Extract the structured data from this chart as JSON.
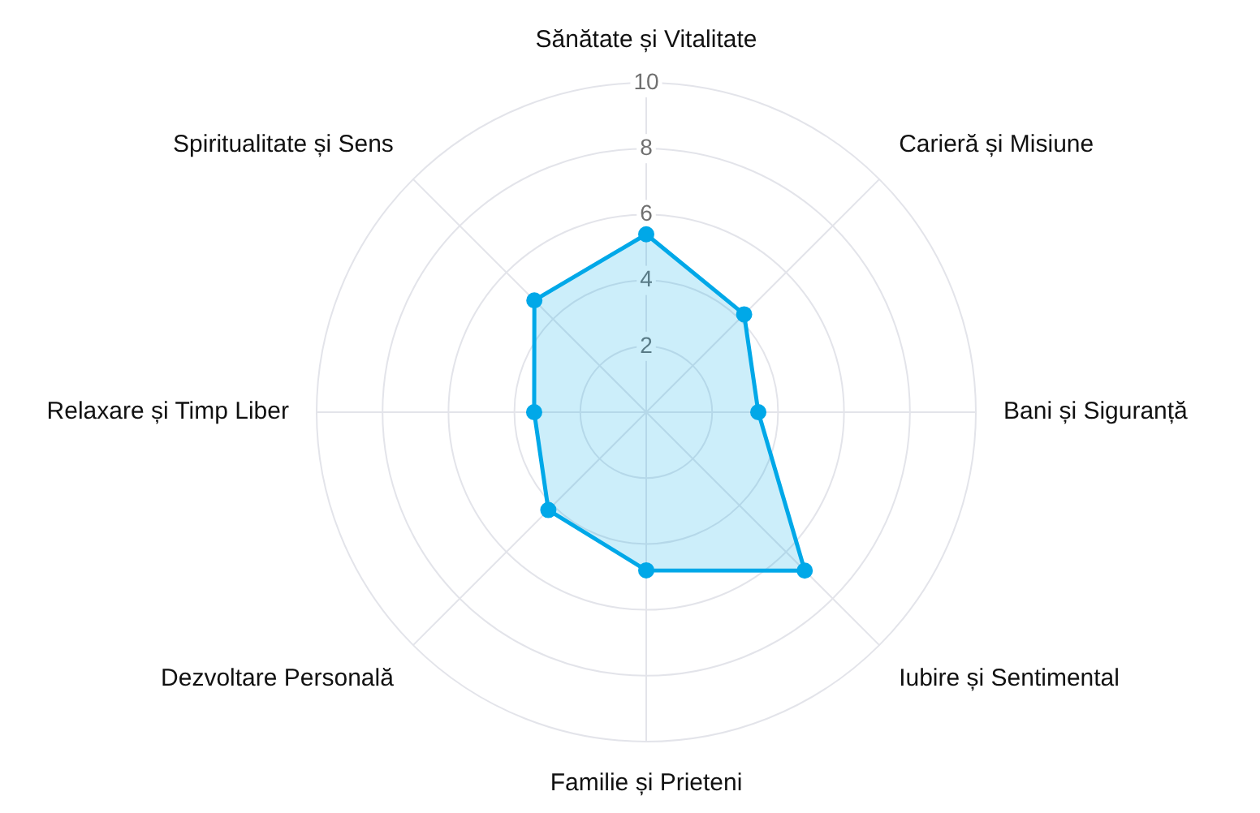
{
  "chart_data": {
    "type": "radar",
    "categories": [
      "Sănătate și Vitalitate",
      "Carieră și Misiune",
      "Bani și Siguranță",
      "Iubire și Sentimental",
      "Familie și Prieteni",
      "Dezvoltare Personală",
      "Relaxare și Timp Liber",
      "Spiritualitate și Sens"
    ],
    "series": [
      {
        "color": "#00a8e8",
        "values": [
          5.4,
          4.2,
          3.4,
          6.8,
          4.8,
          4.2,
          3.4,
          4.8
        ]
      }
    ],
    "ylim": [
      0,
      10
    ],
    "yticks": [
      2,
      4,
      6,
      8,
      10
    ],
    "grid": true,
    "marker": "circle"
  }
}
